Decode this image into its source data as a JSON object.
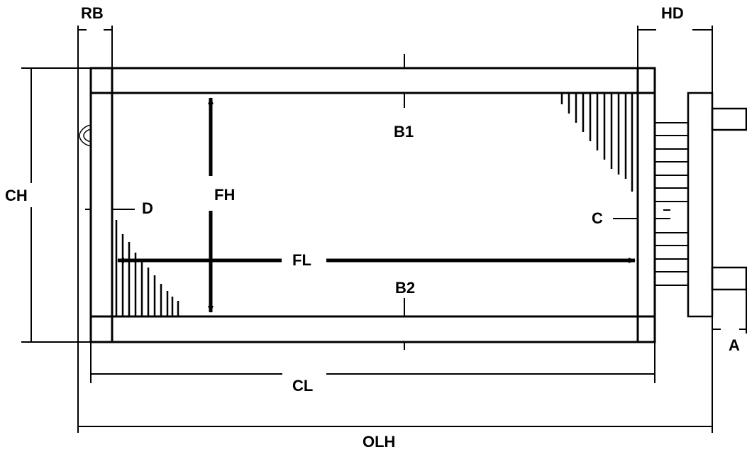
{
  "labels": {
    "rb": "RB",
    "hd": "HD",
    "ch": "CH",
    "b1": "B1",
    "fh": "FH",
    "d": "D",
    "c": "C",
    "fl": "FL",
    "b2": "B2",
    "a": "A",
    "cl": "CL",
    "olh": "OLH"
  },
  "colors": {
    "ink": "#000000",
    "background": "#ffffff"
  }
}
